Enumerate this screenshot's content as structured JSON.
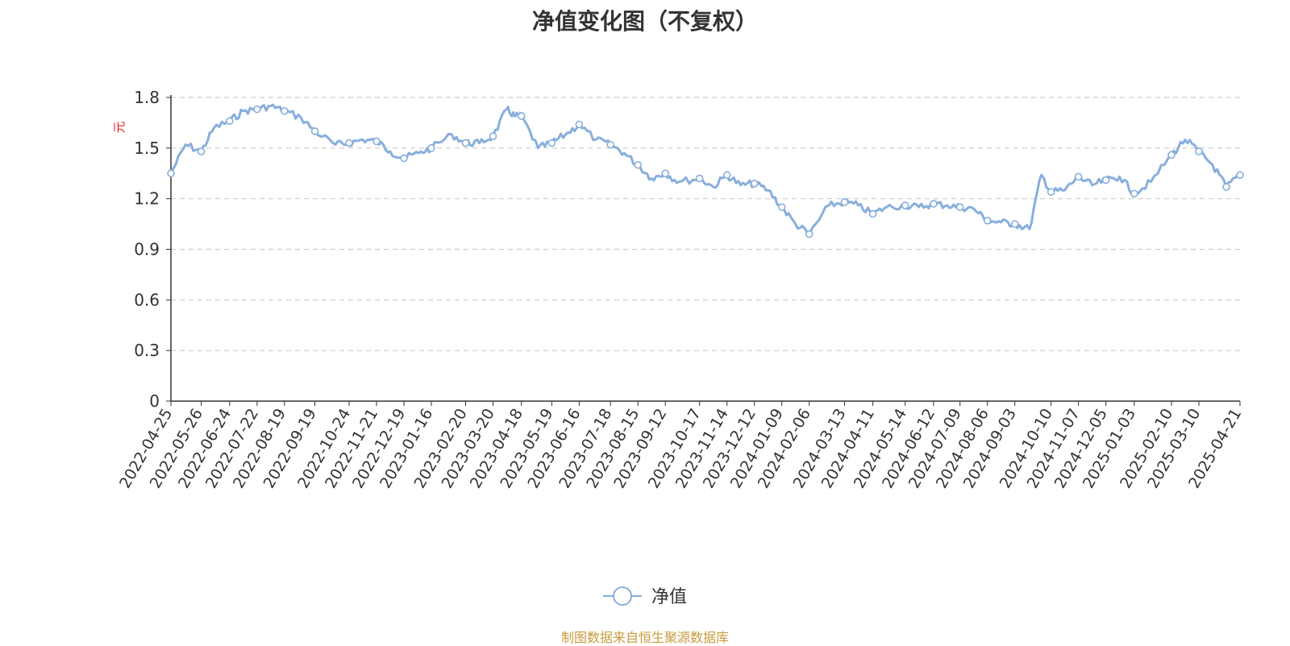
{
  "title": "净值变化图（不复权）",
  "source_note": "制图数据来自恒生聚源数据库",
  "colors": {
    "series": "#88aedc",
    "grid": "#cccccc",
    "axis": "#333333",
    "unit": "#e02020",
    "source": "#c89b3c"
  },
  "chart_data": {
    "type": "line",
    "title": "净值变化图（不复权）",
    "ylabel": "元",
    "ylim": [
      0,
      1.8
    ],
    "yticks": [
      "0",
      "0.3",
      "0.6",
      "0.9",
      "1.2",
      "1.5",
      "1.8"
    ],
    "grid": true,
    "legend": "bottom-center",
    "x_tick_labels": [
      "2022-04-25",
      "2022-05-26",
      "2022-06-24",
      "2022-07-22",
      "2022-08-19",
      "2022-09-19",
      "2022-10-24",
      "2022-11-21",
      "2022-12-19",
      "2023-01-16",
      "2023-02-20",
      "2023-03-20",
      "2023-04-18",
      "2023-05-19",
      "2023-06-16",
      "2023-07-18",
      "2023-08-15",
      "2023-09-12",
      "2023-10-17",
      "2023-11-14",
      "2023-12-12",
      "2024-01-09",
      "2024-02-06",
      "2024-03-13",
      "2024-04-11",
      "2024-05-14",
      "2024-06-12",
      "2024-07-09",
      "2024-08-06",
      "2024-09-03",
      "2024-10-10",
      "2024-11-07",
      "2024-12-05",
      "2025-01-03",
      "2025-02-10",
      "2025-03-10",
      "2025-04-21"
    ],
    "series": [
      {
        "name": "净值",
        "x": [
          "2022-04-25",
          "2022-05-10",
          "2022-05-26",
          "2022-06-08",
          "2022-06-24",
          "2022-07-08",
          "2022-07-22",
          "2022-08-05",
          "2022-08-19",
          "2022-09-05",
          "2022-09-19",
          "2022-10-10",
          "2022-10-24",
          "2022-11-07",
          "2022-11-21",
          "2022-12-05",
          "2022-12-19",
          "2023-01-03",
          "2023-01-16",
          "2023-02-06",
          "2023-02-20",
          "2023-03-06",
          "2023-03-20",
          "2023-04-03",
          "2023-04-11",
          "2023-04-18",
          "2023-05-05",
          "2023-05-19",
          "2023-06-02",
          "2023-06-16",
          "2023-07-03",
          "2023-07-18",
          "2023-08-01",
          "2023-08-15",
          "2023-08-29",
          "2023-09-12",
          "2023-09-26",
          "2023-10-17",
          "2023-10-31",
          "2023-11-14",
          "2023-11-28",
          "2023-12-12",
          "2023-12-26",
          "2024-01-09",
          "2024-01-23",
          "2024-02-06",
          "2024-02-26",
          "2024-03-13",
          "2024-03-27",
          "2024-04-11",
          "2024-04-25",
          "2024-05-14",
          "2024-05-28",
          "2024-06-12",
          "2024-06-26",
          "2024-07-09",
          "2024-07-23",
          "2024-08-06",
          "2024-08-20",
          "2024-09-03",
          "2024-09-18",
          "2024-09-30",
          "2024-10-10",
          "2024-10-24",
          "2024-11-07",
          "2024-11-21",
          "2024-12-05",
          "2024-12-19",
          "2025-01-03",
          "2025-01-20",
          "2025-02-10",
          "2025-02-24",
          "2025-03-10",
          "2025-03-24",
          "2025-04-07",
          "2025-04-21"
        ],
        "y": [
          1.35,
          1.52,
          1.48,
          1.62,
          1.66,
          1.72,
          1.73,
          1.75,
          1.72,
          1.68,
          1.6,
          1.52,
          1.53,
          1.55,
          1.54,
          1.48,
          1.44,
          1.47,
          1.5,
          1.58,
          1.53,
          1.53,
          1.57,
          1.73,
          1.69,
          1.69,
          1.5,
          1.53,
          1.58,
          1.64,
          1.55,
          1.52,
          1.47,
          1.4,
          1.32,
          1.35,
          1.3,
          1.32,
          1.27,
          1.34,
          1.28,
          1.29,
          1.25,
          1.15,
          1.05,
          0.99,
          1.16,
          1.18,
          1.16,
          1.11,
          1.15,
          1.16,
          1.15,
          1.17,
          1.16,
          1.15,
          1.14,
          1.07,
          1.06,
          1.05,
          1.02,
          1.34,
          1.24,
          1.25,
          1.33,
          1.28,
          1.31,
          1.33,
          1.23,
          1.3,
          1.46,
          1.55,
          1.48,
          1.4,
          1.27,
          1.34
        ],
        "markers": [
          "2022-04-25",
          "2022-05-26",
          "2022-06-24",
          "2022-07-22",
          "2022-08-19",
          "2022-09-19",
          "2022-10-24",
          "2022-11-21",
          "2022-12-19",
          "2023-01-16",
          "2023-02-20",
          "2023-03-20",
          "2023-04-18",
          "2023-05-19",
          "2023-06-16",
          "2023-07-18",
          "2023-08-15",
          "2023-09-12",
          "2023-10-17",
          "2023-11-14",
          "2023-12-12",
          "2024-01-09",
          "2024-02-06",
          "2024-03-13",
          "2024-04-11",
          "2024-05-14",
          "2024-06-12",
          "2024-07-09",
          "2024-08-06",
          "2024-09-03",
          "2024-10-10",
          "2024-11-07",
          "2024-12-05",
          "2025-01-03",
          "2025-02-10",
          "2025-03-10",
          "2025-04-07",
          "2025-04-21"
        ]
      }
    ]
  }
}
